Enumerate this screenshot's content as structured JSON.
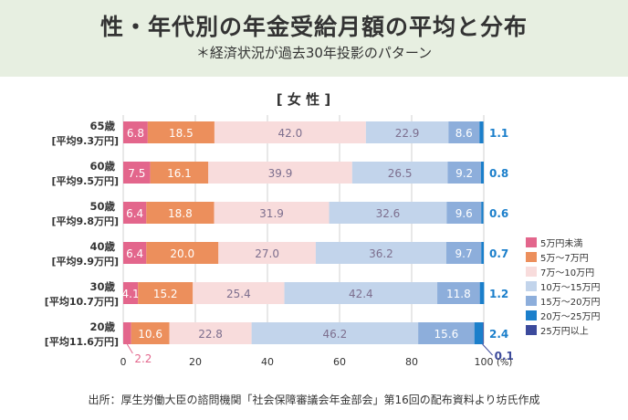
{
  "header": {
    "title": "性・年代別の年金受給月額の平均と分布",
    "subtitle": "＊経済状況が過去30年投影のパターン"
  },
  "chart_data": {
    "type": "bar",
    "stacked": true,
    "orientation": "horizontal",
    "title": "[ 女 性 ]",
    "categories": [
      {
        "label": "65歳",
        "sublabel": "[平均9.3万円]"
      },
      {
        "label": "60歳",
        "sublabel": "[平均9.5万円]"
      },
      {
        "label": "50歳",
        "sublabel": "[平均9.8万円]"
      },
      {
        "label": "40歳",
        "sublabel": "[平均9.9万円]"
      },
      {
        "label": "30歳",
        "sublabel": "[平均10.7万円]"
      },
      {
        "label": "20歳",
        "sublabel": "[平均11.6万円]"
      }
    ],
    "series": [
      {
        "name": "5万円未満",
        "color": "#e3668c",
        "values": [
          6.8,
          7.5,
          6.4,
          6.4,
          4.1,
          2.2
        ]
      },
      {
        "name": "5万～7万円",
        "color": "#ec8f5c",
        "values": [
          18.5,
          16.1,
          18.8,
          20.0,
          15.2,
          10.6
        ]
      },
      {
        "name": "7万～10万円",
        "color": "#f8dcdc",
        "values": [
          42.0,
          39.9,
          31.9,
          27.0,
          25.4,
          22.8
        ]
      },
      {
        "name": "10万～15万円",
        "color": "#c2d4eb",
        "values": [
          22.9,
          26.5,
          32.6,
          36.2,
          42.4,
          46.2
        ]
      },
      {
        "name": "15万～20万円",
        "color": "#8daedb",
        "values": [
          8.6,
          9.2,
          9.6,
          9.7,
          11.8,
          15.6
        ]
      },
      {
        "name": "20万～25万円",
        "color": "#1b7fcb",
        "values": [
          1.1,
          0.8,
          0.6,
          0.7,
          1.2,
          2.4
        ]
      },
      {
        "name": "25万円以上",
        "color": "#3c4a9c",
        "values": [
          0.0,
          0.0,
          0.0,
          0.0,
          0.0,
          0.1
        ]
      }
    ],
    "xlim": [
      0,
      100
    ],
    "xticks": [
      "0",
      "20",
      "40",
      "60",
      "80",
      "100"
    ],
    "xunit": "(%)",
    "grid": true,
    "legend_position": "right"
  },
  "source": "出所：厚生労働大臣の諮問機関「社会保障審議会年金部会」第16回の配布資料より坊氏作成"
}
